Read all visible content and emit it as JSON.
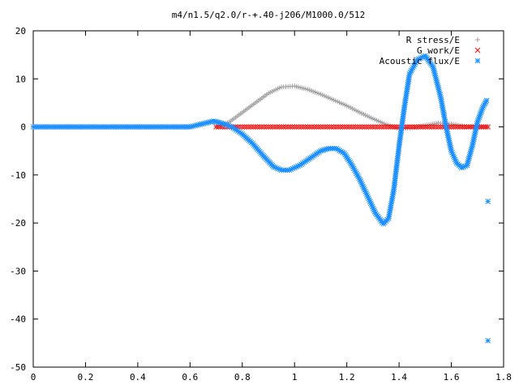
{
  "chart_data": {
    "type": "scatter",
    "title": "m4/n1.5/q2.0/r-+.40-j206/M1000.0/512",
    "xlabel": "",
    "ylabel": "",
    "xlim": [
      0,
      1.8
    ],
    "ylim": [
      -50,
      20
    ],
    "xticks": [
      0,
      0.2,
      0.4,
      0.6,
      0.8,
      1,
      1.2,
      1.4,
      1.6,
      1.8
    ],
    "yticks": [
      -50,
      -40,
      -30,
      -20,
      -10,
      0,
      10,
      20
    ],
    "xtick_labels": [
      "0",
      "0.2",
      "0.4",
      "0.6",
      "0.8",
      "1",
      "1.2",
      "1.4",
      "1.6",
      "1.8"
    ],
    "ytick_labels": [
      "-50",
      "-40",
      "-30",
      "-20",
      "-10",
      "0",
      "10",
      "20"
    ],
    "grid": false,
    "legend_position": "top-right",
    "series": [
      {
        "name": "R stress/E",
        "marker": "plus",
        "color": "#a0a0a0",
        "x": [
          0.7,
          0.75,
          0.8,
          0.85,
          0.9,
          0.95,
          1.0,
          1.05,
          1.1,
          1.15,
          1.2,
          1.25,
          1.3,
          1.35,
          1.4,
          1.45,
          1.5,
          1.55,
          1.6,
          1.65,
          1.7,
          1.74
        ],
        "y": [
          0,
          1,
          3,
          5,
          7,
          8.3,
          8.5,
          7.8,
          6.8,
          5.6,
          4.4,
          3.0,
          1.7,
          0.5,
          -0.4,
          -0.2,
          0.3,
          0.8,
          0.6,
          0.1,
          0,
          0
        ]
      },
      {
        "name": "G work/E",
        "marker": "cross",
        "color": "#ff0000",
        "x": [
          0.7,
          0.75,
          0.8,
          0.85,
          0.9,
          0.95,
          1.0,
          1.05,
          1.1,
          1.15,
          1.2,
          1.25,
          1.3,
          1.35,
          1.4,
          1.45,
          1.5,
          1.55,
          1.6,
          1.65,
          1.7,
          1.74
        ],
        "y": [
          0,
          0,
          0,
          0,
          0,
          0,
          0,
          0,
          0,
          0,
          0,
          0,
          0,
          0,
          0,
          0,
          0,
          0,
          0,
          0,
          0,
          0
        ]
      },
      {
        "name": "Acoustic flux/E",
        "marker": "star",
        "color": "#1e90ff",
        "x": [
          0,
          0.1,
          0.2,
          0.3,
          0.4,
          0.5,
          0.6,
          0.69,
          0.72,
          0.76,
          0.8,
          0.84,
          0.88,
          0.92,
          0.95,
          0.98,
          1.02,
          1.06,
          1.1,
          1.13,
          1.16,
          1.19,
          1.22,
          1.25,
          1.28,
          1.31,
          1.34,
          1.36,
          1.38,
          1.4,
          1.42,
          1.44,
          1.47,
          1.5,
          1.53,
          1.56,
          1.58,
          1.6,
          1.62,
          1.64,
          1.66,
          1.68,
          1.7,
          1.72,
          1.735,
          1.74,
          1.74
        ],
        "y": [
          0,
          0,
          0,
          0,
          0,
          0,
          0,
          1.2,
          0.8,
          0,
          -1.5,
          -3.5,
          -6.0,
          -8.3,
          -9.0,
          -9.0,
          -8.0,
          -6.5,
          -5.0,
          -4.5,
          -4.5,
          -5.5,
          -8.0,
          -11.0,
          -14.5,
          -18.0,
          -20.2,
          -19.0,
          -13.0,
          -4.0,
          4.0,
          11.0,
          14.0,
          14.8,
          12.5,
          6.0,
          0.0,
          -5.0,
          -7.5,
          -8.5,
          -8.0,
          -4.0,
          1.0,
          4.0,
          5.5,
          -15.5,
          -44.5
        ]
      }
    ]
  }
}
